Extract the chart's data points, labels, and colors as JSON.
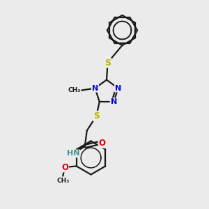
{
  "background_color": "#ebebeb",
  "bond_color": "#1a1a1a",
  "N_color": "#0000e0",
  "O_color": "#e00000",
  "S_color": "#b8b800",
  "H_color": "#4a9090",
  "C_color": "#1a1a1a",
  "bond_width": 1.6,
  "figsize": [
    3.0,
    3.0
  ],
  "dpi": 100,
  "xlim": [
    0,
    10
  ],
  "ylim": [
    0,
    10
  ]
}
